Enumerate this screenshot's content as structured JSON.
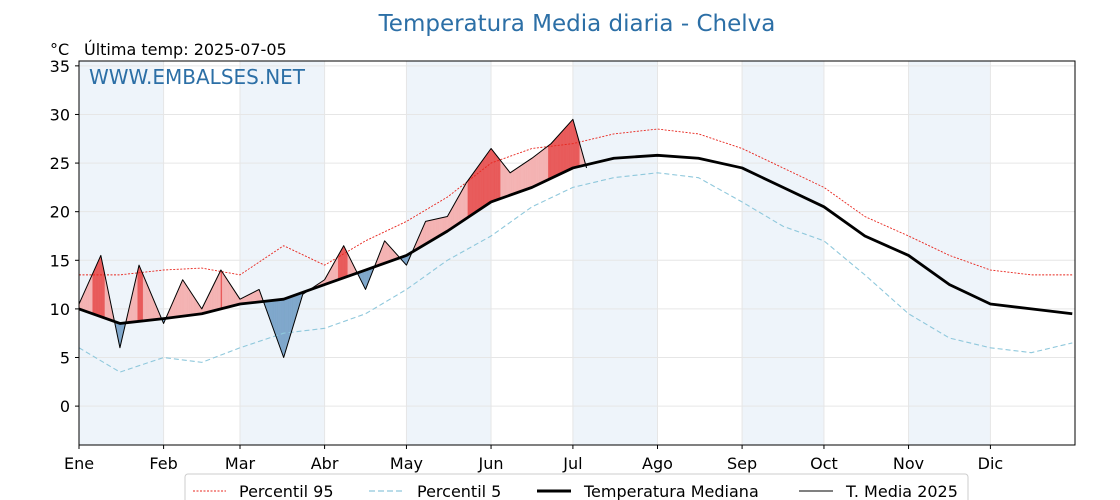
{
  "chart_data": {
    "type": "line",
    "title": "Temperatura Media diaria - Chelva",
    "unit_label": "°C",
    "last_temp_label": "Última temp: 2025-07-05",
    "watermark": "WWW.EMBALSES.NET",
    "ylim": [
      -4,
      35.5
    ],
    "yticks": [
      0,
      5,
      10,
      15,
      20,
      25,
      30,
      35
    ],
    "xlim": [
      0,
      365
    ],
    "month_labels": [
      "Ene",
      "Feb",
      "Mar",
      "Abr",
      "May",
      "Jun",
      "Jul",
      "Ago",
      "Sep",
      "Oct",
      "Nov",
      "Dic"
    ],
    "month_starts": [
      0,
      31,
      59,
      90,
      120,
      151,
      181,
      212,
      243,
      273,
      304,
      334
    ],
    "grid": true,
    "legend_position": "bottom-center",
    "colors": {
      "p95": "#e8271f",
      "p5": "#8fc8dc",
      "median": "#000000",
      "current": "#000000",
      "above_fill": "#f4b3b3",
      "above_strong_fill": "#e85a5a",
      "below_fill": "#7fa7cb",
      "month_band": "#eef4fa",
      "title": "#2c6fa6"
    },
    "series": [
      {
        "name": "Percentil 95",
        "style": "dotted-red",
        "x": [
          0,
          15,
          31,
          45,
          59,
          75,
          90,
          105,
          120,
          135,
          151,
          166,
          181,
          196,
          212,
          227,
          243,
          258,
          273,
          288,
          304,
          319,
          334,
          349,
          364
        ],
        "values": [
          13.5,
          13.5,
          14.0,
          14.2,
          13.5,
          16.5,
          14.5,
          17.0,
          19.0,
          21.5,
          25.0,
          26.5,
          27.0,
          28.0,
          28.5,
          28.0,
          26.5,
          24.5,
          22.5,
          19.5,
          17.5,
          15.5,
          14.0,
          13.5,
          13.5
        ]
      },
      {
        "name": "Percentil 5",
        "style": "dashed-lightblue",
        "x": [
          0,
          15,
          31,
          45,
          59,
          75,
          90,
          105,
          120,
          135,
          151,
          166,
          181,
          196,
          212,
          227,
          243,
          258,
          273,
          288,
          304,
          319,
          334,
          349,
          364
        ],
        "values": [
          6.0,
          3.5,
          5.0,
          4.5,
          6.0,
          7.5,
          8.0,
          9.5,
          12.0,
          15.0,
          17.5,
          20.5,
          22.5,
          23.5,
          24.0,
          23.5,
          21.0,
          18.5,
          17.0,
          13.5,
          9.5,
          7.0,
          6.0,
          5.5,
          6.5
        ]
      },
      {
        "name": "Temperatura Mediana",
        "style": "thick-black",
        "x": [
          0,
          15,
          31,
          45,
          59,
          75,
          90,
          105,
          120,
          135,
          151,
          166,
          181,
          196,
          212,
          227,
          243,
          258,
          273,
          288,
          304,
          319,
          334,
          349,
          364
        ],
        "values": [
          10.0,
          8.5,
          9.0,
          9.5,
          10.5,
          11.0,
          12.5,
          14.0,
          15.5,
          18.0,
          21.0,
          22.5,
          24.5,
          25.5,
          25.8,
          25.5,
          24.5,
          22.5,
          20.5,
          17.5,
          15.5,
          12.5,
          10.5,
          10.0,
          9.5
        ]
      },
      {
        "name": "T. Media 2025",
        "style": "thin-black",
        "x": [
          0,
          8,
          15,
          22,
          31,
          38,
          45,
          52,
          59,
          66,
          75,
          82,
          90,
          97,
          105,
          112,
          120,
          127,
          135,
          142,
          151,
          158,
          166,
          173,
          181,
          186
        ],
        "values": [
          10.5,
          15.5,
          6.0,
          14.5,
          8.5,
          13.0,
          10.0,
          14.0,
          11.0,
          12.0,
          5.0,
          11.5,
          13.0,
          16.5,
          12.0,
          17.0,
          14.5,
          19.0,
          19.5,
          23.0,
          26.5,
          24.0,
          25.5,
          27.0,
          29.5,
          24.5
        ]
      }
    ]
  }
}
